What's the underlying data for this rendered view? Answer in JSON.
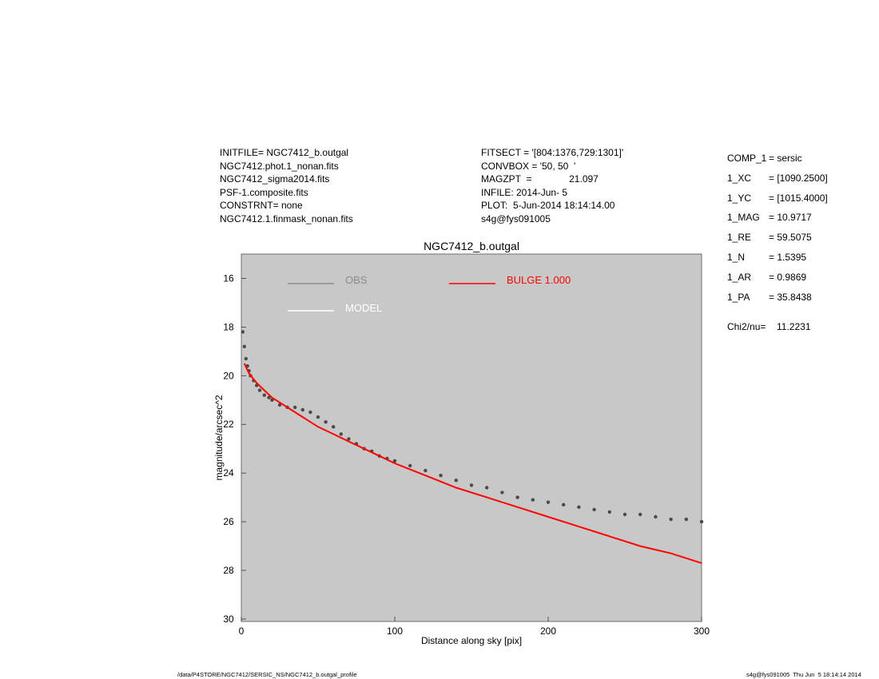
{
  "header": {
    "left_lines": [
      "INITFILE= NGC7412_b.outgal",
      "NGC7412.phot.1_nonan.fits",
      "NGC7412_sigma2014.fits",
      "PSF-1.composite.fits",
      "CONSTRNT= none",
      "NGC7412.1.finmask_nonan.fits"
    ],
    "mid_lines": [
      "FITSECT = '[804:1376,729:1301]'",
      "CONVBOX = '50, 50  '",
      "MAGZPT  =              21.097",
      "INFILE: 2014-Jun- 5",
      "PLOT:  5-Jun-2014 18:14:14.00",
      "s4g@fys091005"
    ]
  },
  "params": [
    {
      "key": "COMP_1",
      "val": "= sersic"
    },
    {
      "key": "1_XC",
      "val": "= [1090.2500]"
    },
    {
      "key": "1_YC",
      "val": "= [1015.4000]"
    },
    {
      "key": "1_MAG",
      "val": "= 10.9717"
    },
    {
      "key": "1_RE",
      "val": "= 59.5075"
    },
    {
      "key": "1_N",
      "val": "= 1.5395"
    },
    {
      "key": "1_AR",
      "val": "= 0.9869"
    },
    {
      "key": "1_PA",
      "val": "= 35.8438"
    },
    {
      "key": "Chi2/nu=",
      "val": "   11.2231"
    }
  ],
  "footer": {
    "left": "/data/P4STORE/NGC7412/SERSIC_NS/NGC7412_b.outgal_profile",
    "right": "s4g@fys091005  Thu Jun  5 18:14:14 2014"
  },
  "colors": {
    "plot_bg": "#c8c8c8",
    "obs": "#4a4a4a",
    "obs_legend": "#8c8c8c",
    "model": "#ffffff",
    "bulge": "#ff0000"
  },
  "chart_data": {
    "type": "scatter",
    "title": "NGC7412_b.outgal",
    "xlabel": "Distance along sky [pix]",
    "ylabel": "magnitude/arcsec^2",
    "xlim": [
      0,
      300
    ],
    "ylim": [
      30,
      15
    ],
    "x_ticks": [
      "0",
      "100",
      "200",
      "300"
    ],
    "x_tick_values": [
      0,
      100,
      200,
      300
    ],
    "y_ticks": [
      "16",
      "18",
      "20",
      "22",
      "24",
      "26",
      "28",
      "30"
    ],
    "y_tick_values": [
      16,
      18,
      20,
      22,
      24,
      26,
      28,
      30
    ],
    "legend": [
      {
        "label": "OBS",
        "color": "#8c8c8c"
      },
      {
        "label": "MODEL",
        "color": "#ffffff"
      },
      {
        "label": "BULGE  1.000",
        "color": "#ff0000"
      }
    ],
    "series": [
      {
        "name": "OBS",
        "style": "points",
        "color": "#4a4a4a",
        "x": [
          1,
          2,
          3,
          4,
          5,
          6,
          8,
          10,
          12,
          15,
          18,
          20,
          25,
          30,
          35,
          40,
          45,
          50,
          55,
          60,
          65,
          70,
          75,
          80,
          85,
          90,
          95,
          100,
          110,
          120,
          130,
          140,
          150,
          160,
          170,
          180,
          190,
          200,
          210,
          220,
          230,
          240,
          250,
          260,
          270,
          280,
          290,
          300
        ],
        "y": [
          18.2,
          18.8,
          19.3,
          19.6,
          19.8,
          20.0,
          20.2,
          20.4,
          20.6,
          20.8,
          20.9,
          21.0,
          21.2,
          21.3,
          21.3,
          21.4,
          21.5,
          21.7,
          21.9,
          22.1,
          22.4,
          22.6,
          22.8,
          23.0,
          23.1,
          23.3,
          23.4,
          23.5,
          23.7,
          23.9,
          24.1,
          24.3,
          24.5,
          24.6,
          24.8,
          25.0,
          25.1,
          25.2,
          25.3,
          25.4,
          25.5,
          25.6,
          25.7,
          25.7,
          25.8,
          25.9,
          25.9,
          26.0
        ]
      },
      {
        "name": "BULGE  1.000",
        "style": "line",
        "color": "#ff0000",
        "x": [
          2,
          5,
          10,
          15,
          20,
          30,
          40,
          50,
          60,
          70,
          80,
          90,
          100,
          120,
          140,
          160,
          180,
          200,
          220,
          240,
          260,
          280,
          300
        ],
        "y": [
          19.5,
          19.9,
          20.3,
          20.6,
          20.9,
          21.3,
          21.7,
          22.1,
          22.4,
          22.7,
          23.0,
          23.3,
          23.6,
          24.1,
          24.6,
          25.0,
          25.4,
          25.8,
          26.2,
          26.6,
          27.0,
          27.3,
          27.7
        ]
      }
    ]
  }
}
